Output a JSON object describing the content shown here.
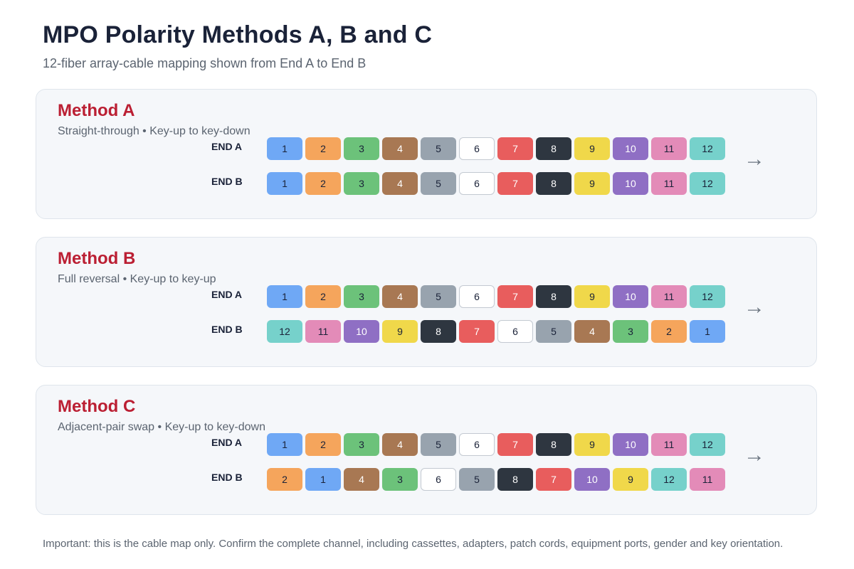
{
  "title": "MPO Polarity Methods A, B and C",
  "subtitle": "12-fiber array-cable mapping shown from End A to End B",
  "labels": {
    "end_a": "END A",
    "end_b": "END B",
    "arrow": "→"
  },
  "fiber_colors": {
    "1": {
      "bg": "#6fa8f5",
      "fg": "#1a2238"
    },
    "2": {
      "bg": "#f5a55c",
      "fg": "#1a2238"
    },
    "3": {
      "bg": "#6cc27a",
      "fg": "#1a2238"
    },
    "4": {
      "bg": "#a87853",
      "fg": "#ffffff"
    },
    "5": {
      "bg": "#98a3ae",
      "fg": "#1a2238"
    },
    "6": {
      "bg": "#ffffff",
      "fg": "#1a2238"
    },
    "7": {
      "bg": "#e85d5d",
      "fg": "#ffffff"
    },
    "8": {
      "bg": "#2e3640",
      "fg": "#ffffff"
    },
    "9": {
      "bg": "#f0d84a",
      "fg": "#1a2238"
    },
    "10": {
      "bg": "#8f6fc4",
      "fg": "#ffffff"
    },
    "11": {
      "bg": "#e38bb8",
      "fg": "#1a2238"
    },
    "12": {
      "bg": "#76d1cb",
      "fg": "#1a2238"
    }
  },
  "methods": [
    {
      "name": "Method A",
      "description": "Straight-through • Key-up to key-down",
      "end_a": [
        1,
        2,
        3,
        4,
        5,
        6,
        7,
        8,
        9,
        10,
        11,
        12
      ],
      "end_b": [
        1,
        2,
        3,
        4,
        5,
        6,
        7,
        8,
        9,
        10,
        11,
        12
      ]
    },
    {
      "name": "Method B",
      "description": "Full reversal • Key-up to key-up",
      "end_a": [
        1,
        2,
        3,
        4,
        5,
        6,
        7,
        8,
        9,
        10,
        11,
        12
      ],
      "end_b": [
        12,
        11,
        10,
        9,
        8,
        7,
        6,
        5,
        4,
        3,
        2,
        1
      ]
    },
    {
      "name": "Method C",
      "description": "Adjacent-pair swap • Key-up to key-down",
      "end_a": [
        1,
        2,
        3,
        4,
        5,
        6,
        7,
        8,
        9,
        10,
        11,
        12
      ],
      "end_b": [
        2,
        1,
        4,
        3,
        6,
        5,
        8,
        7,
        10,
        9,
        12,
        11
      ]
    }
  ],
  "footnote": "Important: this is the cable map only. Confirm the complete channel, including cassettes, adapters, patch cords, equipment ports, gender and key orientation."
}
